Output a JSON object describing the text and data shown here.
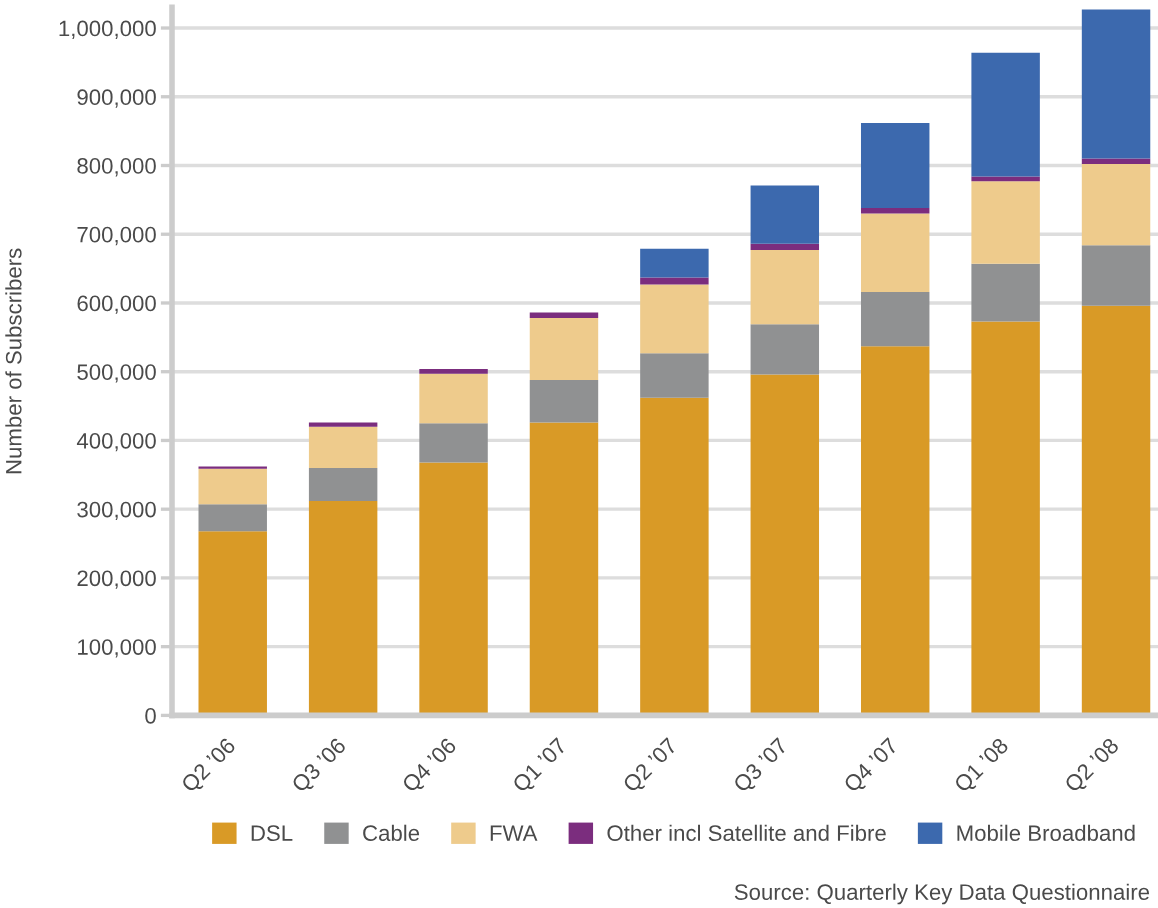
{
  "chart_data": {
    "type": "bar",
    "stacked": true,
    "ylabel": "Number of Subscribers",
    "categories": [
      "Q2 ’06",
      "Q3 ’06",
      "Q4 ’06",
      "Q1 ’07",
      "Q2 ’07",
      "Q3 ’07",
      "Q4 ’07",
      "Q1 ’08",
      "Q2 ’08"
    ],
    "series": [
      {
        "name": "DSL",
        "color": "#d99a26",
        "values": [
          268000,
          312000,
          368000,
          426000,
          462000,
          496000,
          537000,
          573000,
          596000
        ]
      },
      {
        "name": "Cable",
        "color": "#909192",
        "values": [
          39000,
          48000,
          57000,
          62000,
          65000,
          73000,
          79000,
          84000,
          88000
        ]
      },
      {
        "name": "FWA",
        "color": "#eecb8c",
        "values": [
          52000,
          60000,
          72000,
          90000,
          100000,
          108000,
          114000,
          120000,
          118000
        ]
      },
      {
        "name": "Other incl Satellite and Fibre",
        "color": "#7b2d7e",
        "values": [
          3000,
          6000,
          7000,
          8000,
          10000,
          9000,
          8000,
          7000,
          8000
        ]
      },
      {
        "name": "Mobile Broadband",
        "color": "#3c69ae",
        "values": [
          null,
          null,
          null,
          null,
          42000,
          85000,
          124000,
          180000,
          217000
        ]
      }
    ],
    "ylim": [
      0,
      1030000
    ],
    "yticks": [
      0,
      {
        "value": 100000,
        "label": "100,000"
      },
      {
        "value": 200000,
        "label": "200,000"
      },
      {
        "value": 300000,
        "label": "300,000"
      },
      {
        "value": 400000,
        "label": "400,000"
      },
      {
        "value": 500000,
        "label": "500,000"
      },
      {
        "value": 600000,
        "label": "600,000"
      },
      {
        "value": 700000,
        "label": "700,000"
      },
      {
        "value": 800000,
        "label": "800,000"
      },
      {
        "value": 900000,
        "label": "900,000"
      },
      {
        "value": 1000000,
        "label": "1,000,000"
      }
    ],
    "grid": "y",
    "legend": "bottom",
    "annotations": [
      "Source: Quarterly Key Data Questionnaire"
    ]
  }
}
